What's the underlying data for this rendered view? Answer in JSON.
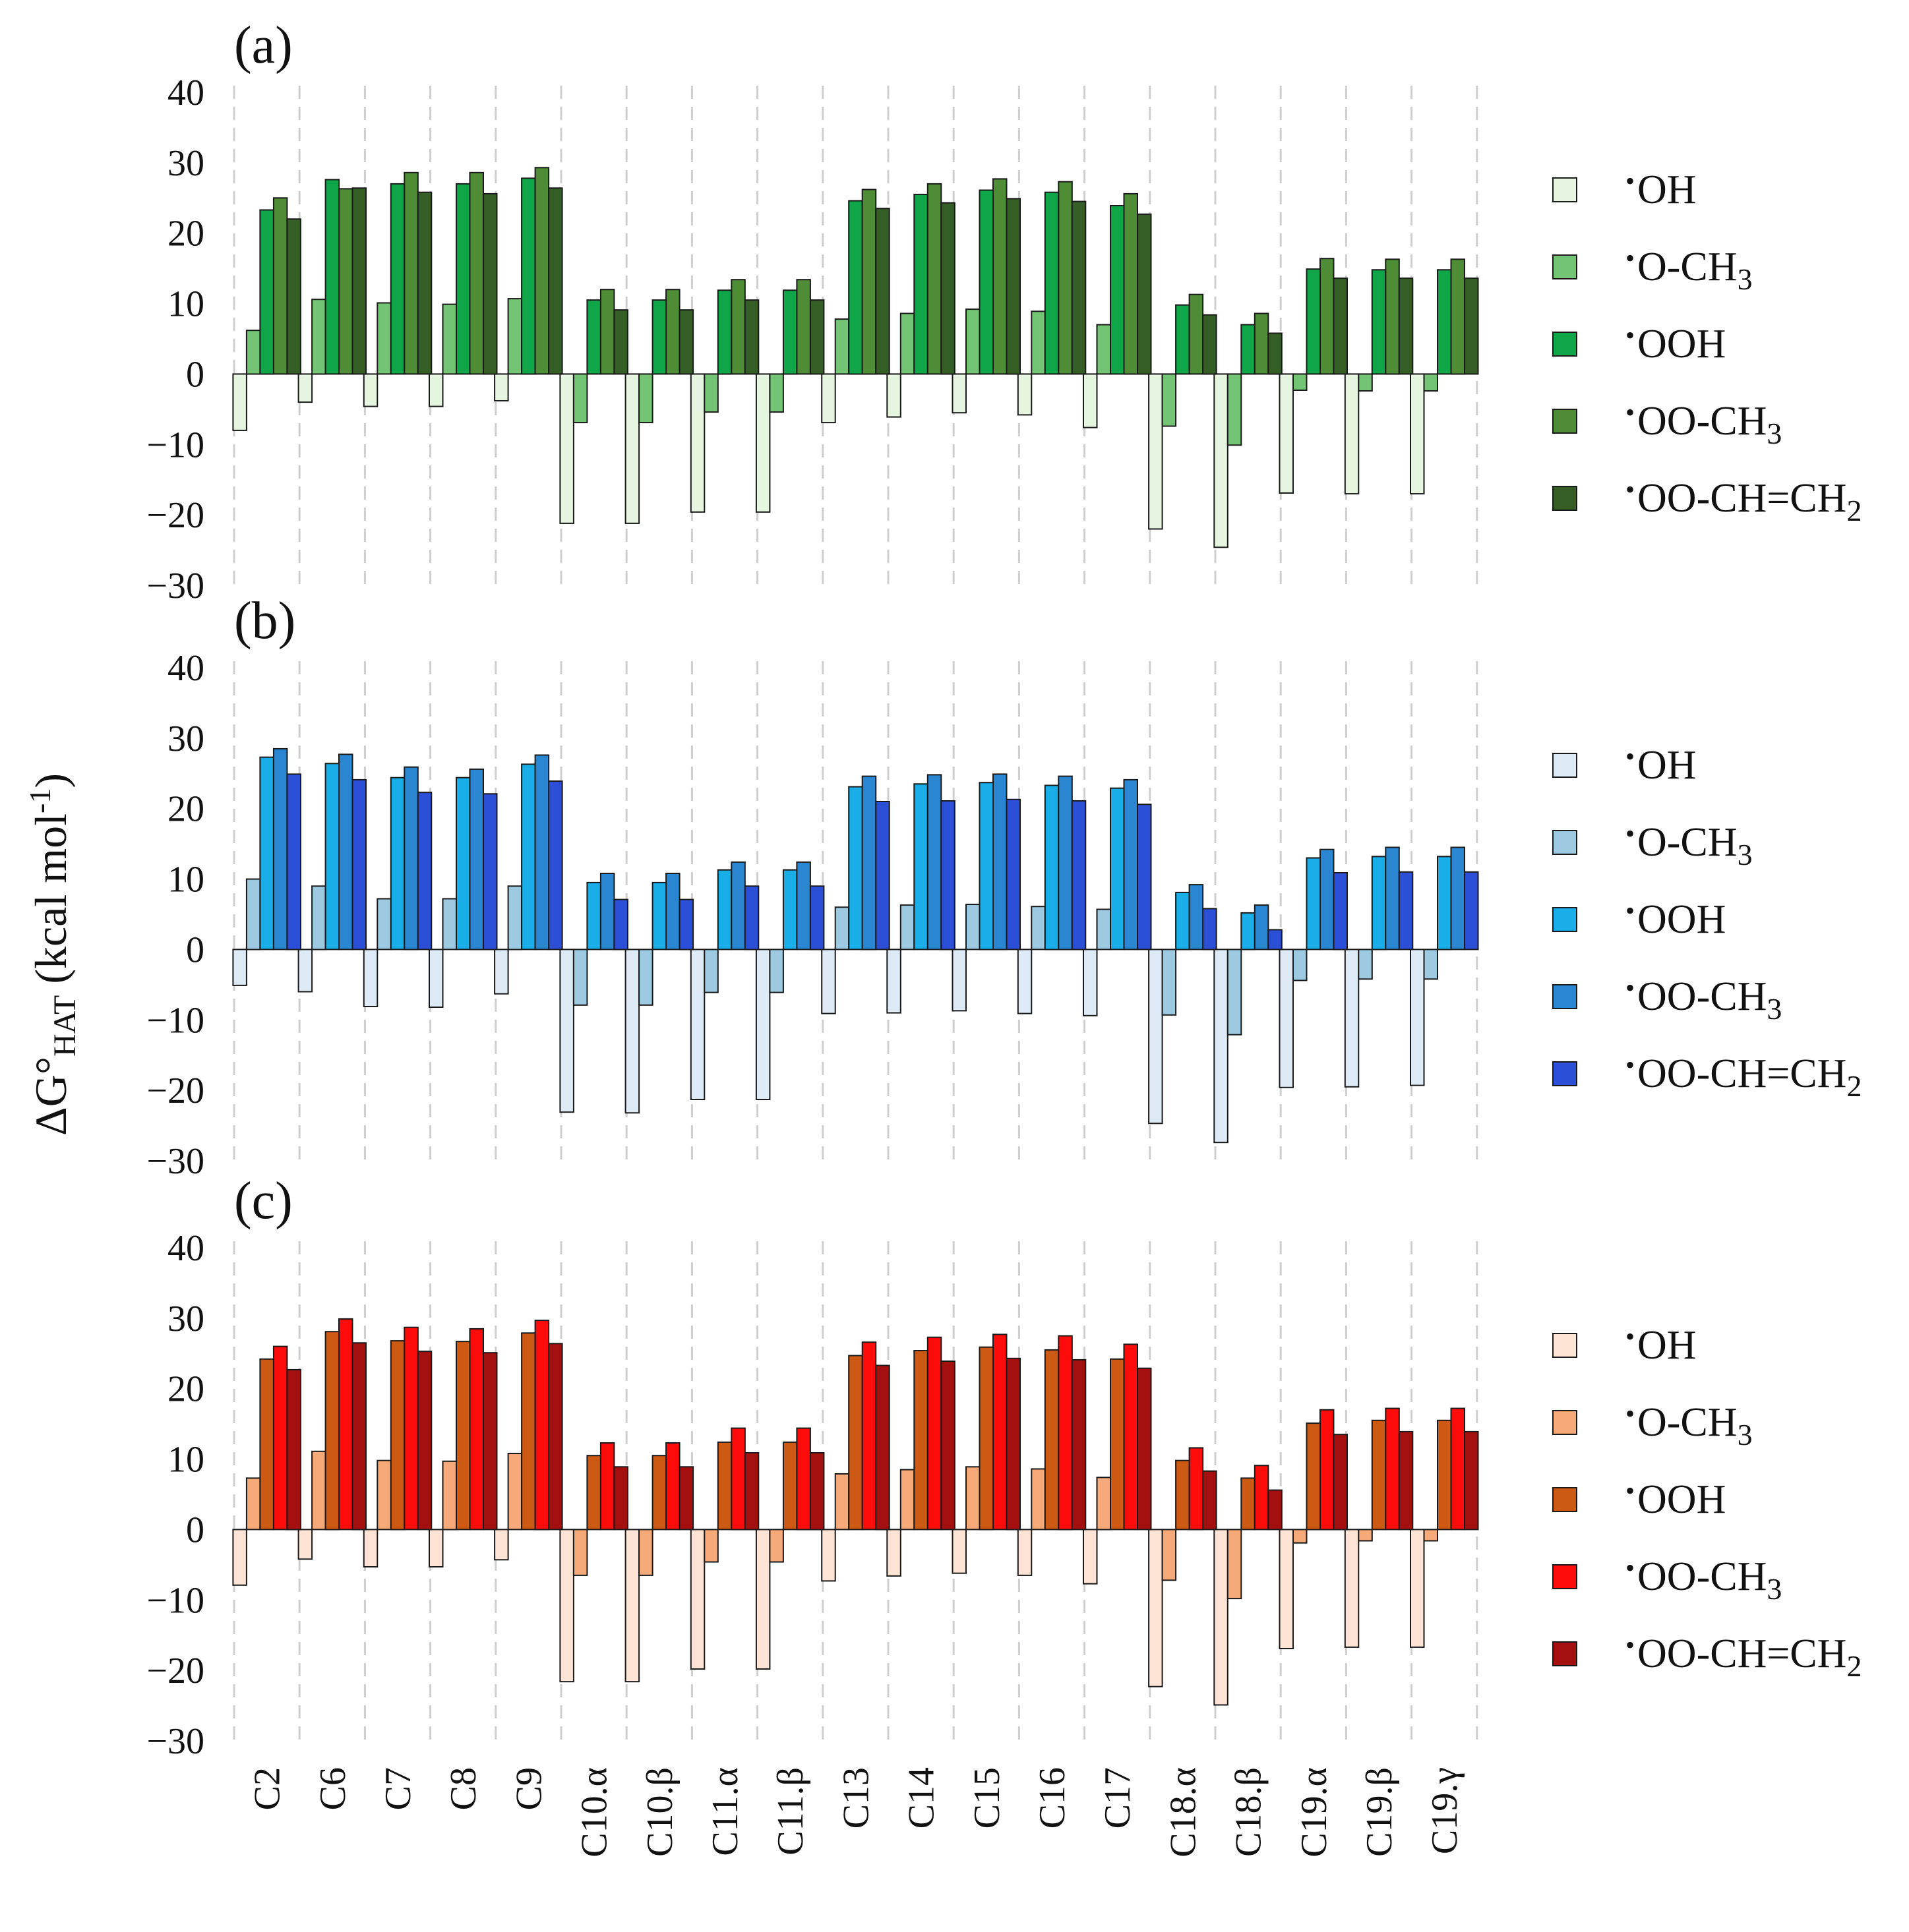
{
  "figure": {
    "ylabel": "ΔG°HAT (kcal mol⁻¹)",
    "ylabel_parts": {
      "delta_g": "ΔG°",
      "subscript": "HAT",
      "units_open": " (kcal mol",
      "units_sup": "-1",
      "units_close": ")"
    }
  },
  "chart_data": [
    {
      "type": "bar",
      "panel_label": "(a)",
      "categories": [
        "C2",
        "C6",
        "C7",
        "C8",
        "C9",
        "C10.α",
        "C10.β",
        "C11.α",
        "C11.β",
        "C13",
        "C14",
        "C15",
        "C16",
        "C17",
        "C18.α",
        "C18.β",
        "C19.α",
        "C19.β",
        "C19.γ"
      ],
      "ylim": [
        -30,
        40
      ],
      "yticks": [
        "40",
        "30",
        "20",
        "10",
        "0",
        "−10",
        "−20",
        "−30"
      ],
      "ytick_values": [
        40,
        30,
        20,
        10,
        0,
        -10,
        -20,
        -30
      ],
      "grid": "vertical dashed between categories",
      "legend_position": "right",
      "series": [
        {
          "name": "•OH",
          "label": "OH",
          "color": "#e5f5e0",
          "values": [
            -8.0,
            -4.0,
            -4.6,
            -4.6,
            -3.8,
            -21.2,
            -21.2,
            -19.6,
            -19.6,
            -6.9,
            -6.1,
            -5.5,
            -5.8,
            -7.6,
            -22.0,
            -24.6,
            -16.9,
            -17.0,
            -17.0
          ]
        },
        {
          "name": "•O-CH3",
          "label": "O-CH",
          "label_sub": "3",
          "color": "#74c476",
          "values": [
            6.2,
            10.6,
            10.1,
            9.9,
            10.7,
            -6.9,
            -6.9,
            -5.4,
            -5.4,
            7.8,
            8.6,
            9.2,
            8.9,
            7.0,
            -7.4,
            -10.1,
            -2.3,
            -2.4,
            -2.4
          ]
        },
        {
          "name": "•OOH",
          "label": "OOH",
          "color": "#0fa64a",
          "values": [
            23.3,
            27.6,
            27.0,
            27.0,
            27.8,
            10.5,
            10.5,
            11.9,
            11.9,
            24.6,
            25.5,
            26.1,
            25.8,
            23.9,
            9.8,
            7.0,
            14.9,
            14.8,
            14.8
          ]
        },
        {
          "name": "•OO-CH3",
          "label": "OO-CH",
          "label_sub": "3",
          "color": "#4e8c35",
          "values": [
            25.0,
            26.3,
            28.6,
            28.6,
            29.3,
            12.0,
            12.0,
            13.4,
            13.4,
            26.2,
            27.0,
            27.7,
            27.3,
            25.6,
            11.3,
            8.6,
            16.4,
            16.3,
            16.3
          ]
        },
        {
          "name": "•OO-CH=CH2",
          "label": "OO-CH=CH",
          "label_sub": "2",
          "color": "#355e27",
          "values": [
            22.0,
            26.4,
            25.8,
            25.6,
            26.4,
            9.1,
            9.1,
            10.5,
            10.5,
            23.5,
            24.3,
            24.9,
            24.5,
            22.7,
            8.4,
            5.8,
            13.6,
            13.6,
            13.6
          ]
        }
      ]
    },
    {
      "type": "bar",
      "panel_label": "(b)",
      "categories": [
        "C2",
        "C6",
        "C7",
        "C8",
        "C9",
        "C10.α",
        "C10.β",
        "C11.α",
        "C11.β",
        "C13",
        "C14",
        "C15",
        "C16",
        "C17",
        "C18.α",
        "C18.β",
        "C19.α",
        "C19.β",
        "C19.γ"
      ],
      "ylim": [
        -30,
        40
      ],
      "yticks": [
        "40",
        "30",
        "20",
        "10",
        "0",
        "−10",
        "−20",
        "−30"
      ],
      "ytick_values": [
        40,
        30,
        20,
        10,
        0,
        -10,
        -20,
        -30
      ],
      "grid": "vertical dashed between categories",
      "legend_position": "right",
      "series": [
        {
          "name": "•OH",
          "label": "OH",
          "color": "#deebf7",
          "values": [
            -5.1,
            -6.0,
            -8.1,
            -8.2,
            -6.3,
            -23.1,
            -23.2,
            -21.3,
            -21.3,
            -9.1,
            -9.0,
            -8.7,
            -9.1,
            -9.4,
            -24.7,
            -27.4,
            -19.6,
            -19.5,
            -19.3
          ]
        },
        {
          "name": "•O-CH3",
          "label": "O-CH",
          "label_sub": "3",
          "color": "#9ecae1",
          "values": [
            10.0,
            9.0,
            7.2,
            7.2,
            9.0,
            -7.9,
            -7.9,
            -6.1,
            -6.1,
            6.0,
            6.3,
            6.4,
            6.1,
            5.7,
            -9.3,
            -12.1,
            -4.4,
            -4.2,
            -4.2
          ]
        },
        {
          "name": "•OOH",
          "label": "OOH",
          "color": "#19aee8",
          "values": [
            27.3,
            26.4,
            24.4,
            24.4,
            26.3,
            9.5,
            9.5,
            11.3,
            11.3,
            23.1,
            23.5,
            23.7,
            23.3,
            22.9,
            8.1,
            5.2,
            13.0,
            13.2,
            13.2
          ]
        },
        {
          "name": "•OO-CH3",
          "label": "OO-CH",
          "label_sub": "3",
          "color": "#2a86d1",
          "values": [
            28.5,
            27.7,
            25.9,
            25.6,
            27.6,
            10.8,
            10.8,
            12.4,
            12.4,
            24.6,
            24.8,
            24.9,
            24.6,
            24.1,
            9.2,
            6.3,
            14.2,
            14.5,
            14.5
          ]
        },
        {
          "name": "•OO-CH=CH2",
          "label": "OO-CH=CH",
          "label_sub": "2",
          "color": "#2b4fd6",
          "values": [
            24.9,
            24.1,
            22.3,
            22.1,
            23.9,
            7.1,
            7.1,
            9.0,
            9.0,
            21.0,
            21.1,
            21.3,
            21.1,
            20.6,
            5.8,
            2.8,
            10.9,
            11.0,
            11.0
          ]
        }
      ]
    },
    {
      "type": "bar",
      "panel_label": "(c)",
      "categories": [
        "C2",
        "C6",
        "C7",
        "C8",
        "C9",
        "C10.α",
        "C10.β",
        "C11.α",
        "C11.β",
        "C13",
        "C14",
        "C15",
        "C16",
        "C17",
        "C18.α",
        "C18.β",
        "C19.α",
        "C19.β",
        "C19.γ"
      ],
      "ylim": [
        -30,
        40
      ],
      "yticks": [
        "40",
        "30",
        "20",
        "10",
        "0",
        "−10",
        "−20",
        "−30"
      ],
      "ytick_values": [
        40,
        30,
        20,
        10,
        0,
        -10,
        -20,
        -30
      ],
      "grid": "vertical dashed between categories",
      "legend_position": "right",
      "series": [
        {
          "name": "•OH",
          "label": "OH",
          "color": "#fde4d4",
          "values": [
            -7.9,
            -4.2,
            -5.3,
            -5.3,
            -4.3,
            -21.6,
            -21.6,
            -19.8,
            -19.8,
            -7.3,
            -6.6,
            -6.2,
            -6.5,
            -7.7,
            -22.3,
            -24.9,
            -16.9,
            -16.7,
            -16.7
          ]
        },
        {
          "name": "•O-CH3",
          "label": "O-CH",
          "label_sub": "3",
          "color": "#f6a979",
          "values": [
            7.3,
            11.1,
            9.8,
            9.7,
            10.8,
            -6.5,
            -6.5,
            -4.6,
            -4.6,
            7.9,
            8.5,
            8.9,
            8.6,
            7.4,
            -7.2,
            -9.8,
            -1.9,
            -1.6,
            -1.6
          ]
        },
        {
          "name": "•OOH",
          "label": "OOH",
          "color": "#cc5a14",
          "values": [
            24.2,
            28.1,
            26.8,
            26.7,
            27.9,
            10.5,
            10.5,
            12.4,
            12.4,
            24.7,
            25.4,
            25.9,
            25.5,
            24.2,
            9.8,
            7.3,
            15.1,
            15.5,
            15.5
          ]
        },
        {
          "name": "•OO-CH3",
          "label": "OO-CH",
          "label_sub": "3",
          "color": "#fe0c0c",
          "values": [
            26.0,
            29.9,
            28.7,
            28.5,
            29.7,
            12.3,
            12.3,
            14.4,
            14.4,
            26.6,
            27.3,
            27.7,
            27.5,
            26.3,
            11.6,
            9.1,
            17.0,
            17.2,
            17.2
          ]
        },
        {
          "name": "•OO-CH=CH2",
          "label": "OO-CH=CH",
          "label_sub": "2",
          "color": "#a40f0f",
          "values": [
            22.7,
            26.5,
            25.3,
            25.1,
            26.4,
            8.9,
            8.9,
            10.9,
            10.9,
            23.3,
            23.9,
            24.3,
            24.1,
            22.9,
            8.3,
            5.6,
            13.5,
            13.9,
            13.9
          ]
        }
      ]
    }
  ]
}
